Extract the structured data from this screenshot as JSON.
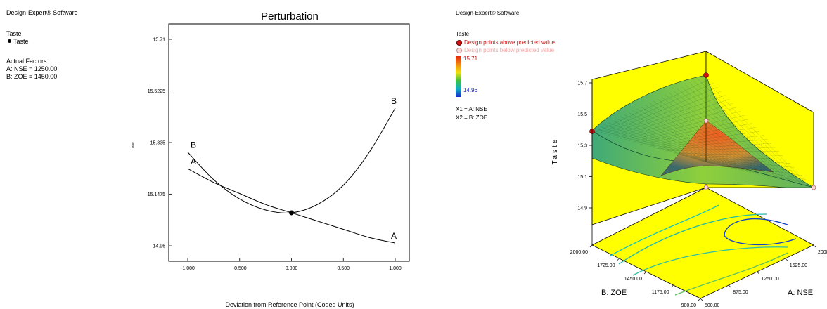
{
  "left_panel": {
    "software": "Design-Expert® Software",
    "response_title": "Taste",
    "response_point": "Taste",
    "factors_title": "Actual Factors",
    "factor_a": "A: NSE = 1250.00",
    "factor_b": "B: ZOE = 1450.00"
  },
  "right_panel": {
    "software": "Design-Expert® Software",
    "response_title": "Taste",
    "above_label": "Design points above predicted value",
    "below_label": "Design points below predicted value",
    "scale_max": "15.71",
    "scale_min": "14.96",
    "x1": "X1 = A: NSE",
    "x2": "X2 = B: ZOE",
    "colors": {
      "above": "#cc1111",
      "below": "#f4b8b8",
      "high": "#e03010",
      "low": "#1828c8"
    }
  },
  "chart_data": [
    {
      "type": "line",
      "title": "Perturbation",
      "xlabel": "Deviation from Reference Point (Coded Units)",
      "ylabel": "Taste",
      "xlim": [
        -1.0,
        1.0
      ],
      "ylim": [
        14.92,
        15.74
      ],
      "x_ticks": [
        "-1.000",
        "-0.500",
        "0.000",
        "0.500",
        "1.000"
      ],
      "y_ticks": [
        "14.96",
        "15.1475",
        "15.335",
        "15.5225",
        "15.71"
      ],
      "reference_point": {
        "x": 0.0,
        "y": 15.08
      },
      "series": [
        {
          "name": "A",
          "x": [
            -1,
            -0.75,
            -0.5,
            -0.25,
            0,
            0.25,
            0.5,
            0.75,
            1
          ],
          "y": [
            15.24,
            15.19,
            15.15,
            15.11,
            15.08,
            15.05,
            15.02,
            14.99,
            14.97
          ]
        },
        {
          "name": "B",
          "x": [
            -1,
            -0.75,
            -0.5,
            -0.25,
            0,
            0.25,
            0.5,
            0.75,
            1
          ],
          "y": [
            15.3,
            15.2,
            15.13,
            15.09,
            15.08,
            15.11,
            15.18,
            15.3,
            15.46
          ]
        }
      ]
    },
    {
      "type": "surface",
      "zlabel": "Taste",
      "xlabel": "A: NSE",
      "ylabel": "B: ZOE",
      "z_ticks": [
        "14.9",
        "15.1",
        "15.3",
        "15.5",
        "15.7"
      ],
      "a_ticks": [
        "500.00",
        "875.00",
        "1250.00",
        "1625.00",
        "2000.00"
      ],
      "b_ticks": [
        "900.00",
        "1175.00",
        "1450.00",
        "1725.00",
        "2000.00"
      ]
    }
  ]
}
